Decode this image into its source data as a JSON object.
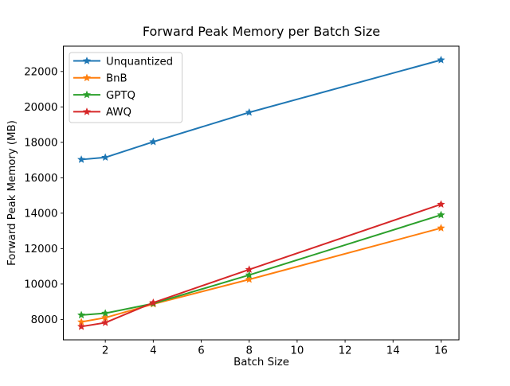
{
  "figure": {
    "background": "#ffffff"
  },
  "chart_data": {
    "type": "line",
    "title": "Forward Peak Memory per Batch Size",
    "xlabel": "Batch Size",
    "ylabel": "Forward Peak Memory (MB)",
    "x": [
      1,
      2,
      4,
      8,
      16
    ],
    "series": [
      {
        "name": "Unquantized",
        "color": "#1f77b4",
        "marker": "star",
        "values": [
          17030,
          17150,
          18030,
          19690,
          22650
        ]
      },
      {
        "name": "BnB",
        "color": "#ff7f0e",
        "marker": "star",
        "values": [
          7860,
          8100,
          8870,
          10260,
          13160
        ]
      },
      {
        "name": "GPTQ",
        "color": "#2ca02c",
        "marker": "star",
        "values": [
          8250,
          8350,
          8900,
          10510,
          13900
        ]
      },
      {
        "name": "AWQ",
        "color": "#d62728",
        "marker": "star",
        "values": [
          7600,
          7820,
          8950,
          10820,
          14500
        ]
      }
    ],
    "xticks": [
      2,
      4,
      6,
      8,
      10,
      12,
      14,
      16
    ],
    "yticks": [
      8000,
      10000,
      12000,
      14000,
      16000,
      18000,
      20000,
      22000
    ],
    "xlim": [
      0.25,
      16.75
    ],
    "ylim": [
      6850,
      23430
    ],
    "grid": false,
    "legend": {
      "position": "upper-left",
      "background": "#ffffff",
      "border_color": "#cccccc"
    }
  }
}
